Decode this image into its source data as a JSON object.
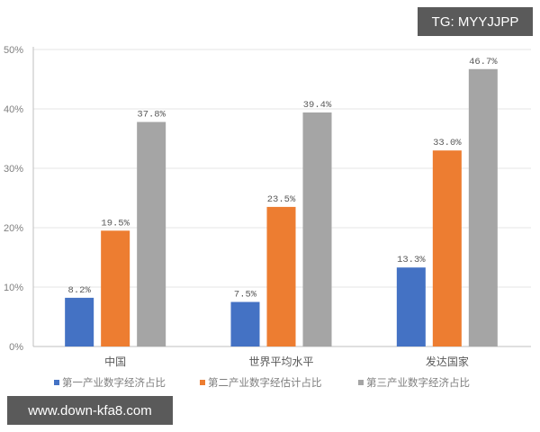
{
  "watermarks": {
    "top_right": "TG: MYYJJPP",
    "bottom_left": "www.down-kfa8.com"
  },
  "colors": {
    "series1": "#4472c4",
    "series2": "#ed7d31",
    "series3": "#a5a5a5",
    "grid": "#e6e6e6",
    "axis": "#bfbfbf"
  },
  "chart_data": {
    "type": "bar",
    "title": "",
    "xlabel": "",
    "ylabel": "",
    "ylim": [
      0,
      50
    ],
    "yticks": [
      "0%",
      "10%",
      "20%",
      "30%",
      "40%",
      "50%"
    ],
    "grid": true,
    "legend_position": "bottom",
    "categories": [
      "中国",
      "世界平均水平",
      "发达国家"
    ],
    "series": [
      {
        "name": "第一产业数字经济占比",
        "values": [
          8.2,
          7.5,
          13.3
        ],
        "labels": [
          "8.2%",
          "7.5%",
          "13.3%"
        ]
      },
      {
        "name": "第二产业数字经估计占比",
        "values": [
          19.5,
          23.5,
          33.0
        ],
        "labels": [
          "19.5%",
          "23.5%",
          "33.0%"
        ]
      },
      {
        "name": "第三产业数字经济占比",
        "values": [
          37.8,
          39.4,
          46.7
        ],
        "labels": [
          "37.8%",
          "39.4%",
          "46.7%"
        ]
      }
    ]
  }
}
